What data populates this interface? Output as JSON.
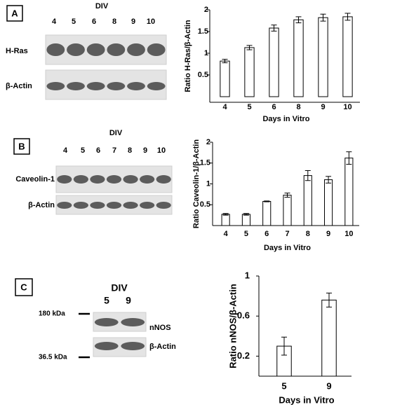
{
  "chart_data": [
    {
      "type": "bar",
      "categories": [
        "4",
        "5",
        "6",
        "8",
        "9",
        "10"
      ],
      "values": [
        0.82,
        1.13,
        1.58,
        1.77,
        1.82,
        1.84
      ],
      "errors": [
        0.04,
        0.05,
        0.07,
        0.07,
        0.08,
        0.08
      ],
      "color": "#ffffff",
      "ylim": [
        0,
        2
      ],
      "yticks": [
        0.5,
        1,
        1.5,
        2
      ],
      "x_label": "Days in Vitro",
      "y_label": "Ratio H-Ras/β-Actin"
    },
    {
      "type": "bar",
      "categories": [
        "4",
        "5",
        "6",
        "7",
        "8",
        "9",
        "10"
      ],
      "values": [
        0.27,
        0.27,
        0.58,
        0.73,
        1.2,
        1.1,
        1.62
      ],
      "errors": [
        0.02,
        0.02,
        0.01,
        0.05,
        0.12,
        0.08,
        0.15
      ],
      "color": "#ffffff",
      "ylim": [
        0,
        2
      ],
      "yticks": [
        0.5,
        1,
        1.5,
        2
      ],
      "x_label": "Days in Vitro",
      "y_label": "Ratio Caveolin-1/β-Actin"
    },
    {
      "type": "bar",
      "categories": [
        "5",
        "9"
      ],
      "values": [
        0.3,
        0.76
      ],
      "errors": [
        0.09,
        0.07
      ],
      "color": "#ffffff",
      "ylim": [
        0,
        1
      ],
      "yticks": [
        0.2,
        0.6,
        1
      ],
      "x_label": "Days in Vitro",
      "y_label": "Ratio nNOS/β-Actin"
    }
  ],
  "blots": [
    {
      "panel": "A",
      "header": "DIV",
      "lanes": [
        "4",
        "5",
        "6",
        "8",
        "9",
        "10"
      ],
      "rows": [
        "H-Ras",
        "β-Actin"
      ]
    },
    {
      "panel": "B",
      "header": "DIV",
      "lanes": [
        "4",
        "5",
        "6",
        "7",
        "8",
        "9",
        "10"
      ],
      "rows": [
        "Caveolin-1",
        "β-Actin"
      ]
    },
    {
      "panel": "C",
      "header": "DIV",
      "lanes": [
        "5",
        "9"
      ],
      "rows": [
        "nNOS",
        "β-Actin"
      ],
      "markers": [
        "180 kDa",
        "36.5 kDa"
      ]
    }
  ]
}
